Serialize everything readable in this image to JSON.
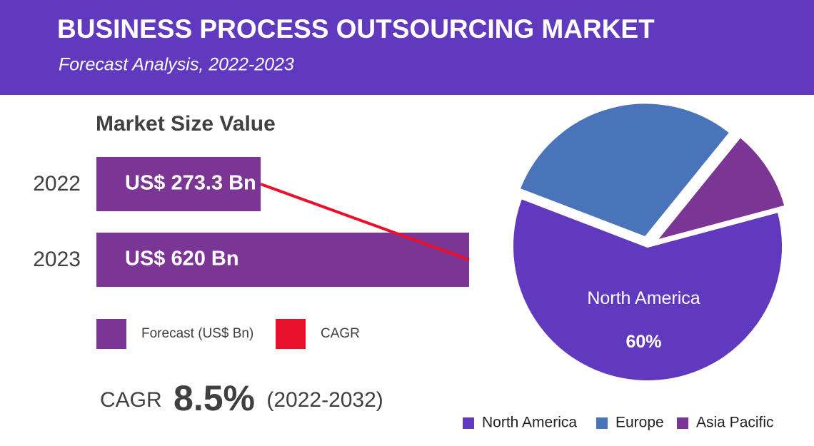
{
  "header": {
    "title": "BUSINESS PROCESS OUTSOURCING MARKET",
    "subtitle": "Forecast Analysis, 2022-2023"
  },
  "chart_data": [
    {
      "type": "bar",
      "orientation": "horizontal",
      "title": "Market Size Value",
      "categories": [
        "2022",
        "2023"
      ],
      "series": [
        {
          "name": "Forecast (US$ Bn)",
          "color": "#7b3594",
          "values": [
            273.3,
            620
          ],
          "value_labels": [
            "US$ 273.3 Bn",
            "US$ 620 Bn"
          ]
        },
        {
          "name": "CAGR",
          "type": "line",
          "color": "#e8102a",
          "values": [
            273.3,
            620
          ]
        }
      ]
    },
    {
      "type": "pie",
      "categories": [
        "North America",
        "Europe",
        "Asia Pacific"
      ],
      "values": [
        60,
        30,
        10
      ],
      "value_labels": [
        "60%",
        null,
        null
      ],
      "colors": [
        "#6039bf",
        "#4a74b9",
        "#7b3594"
      ]
    }
  ],
  "cagr": {
    "label": "CAGR",
    "value": "8.5%",
    "period": "(2022-2032)"
  }
}
